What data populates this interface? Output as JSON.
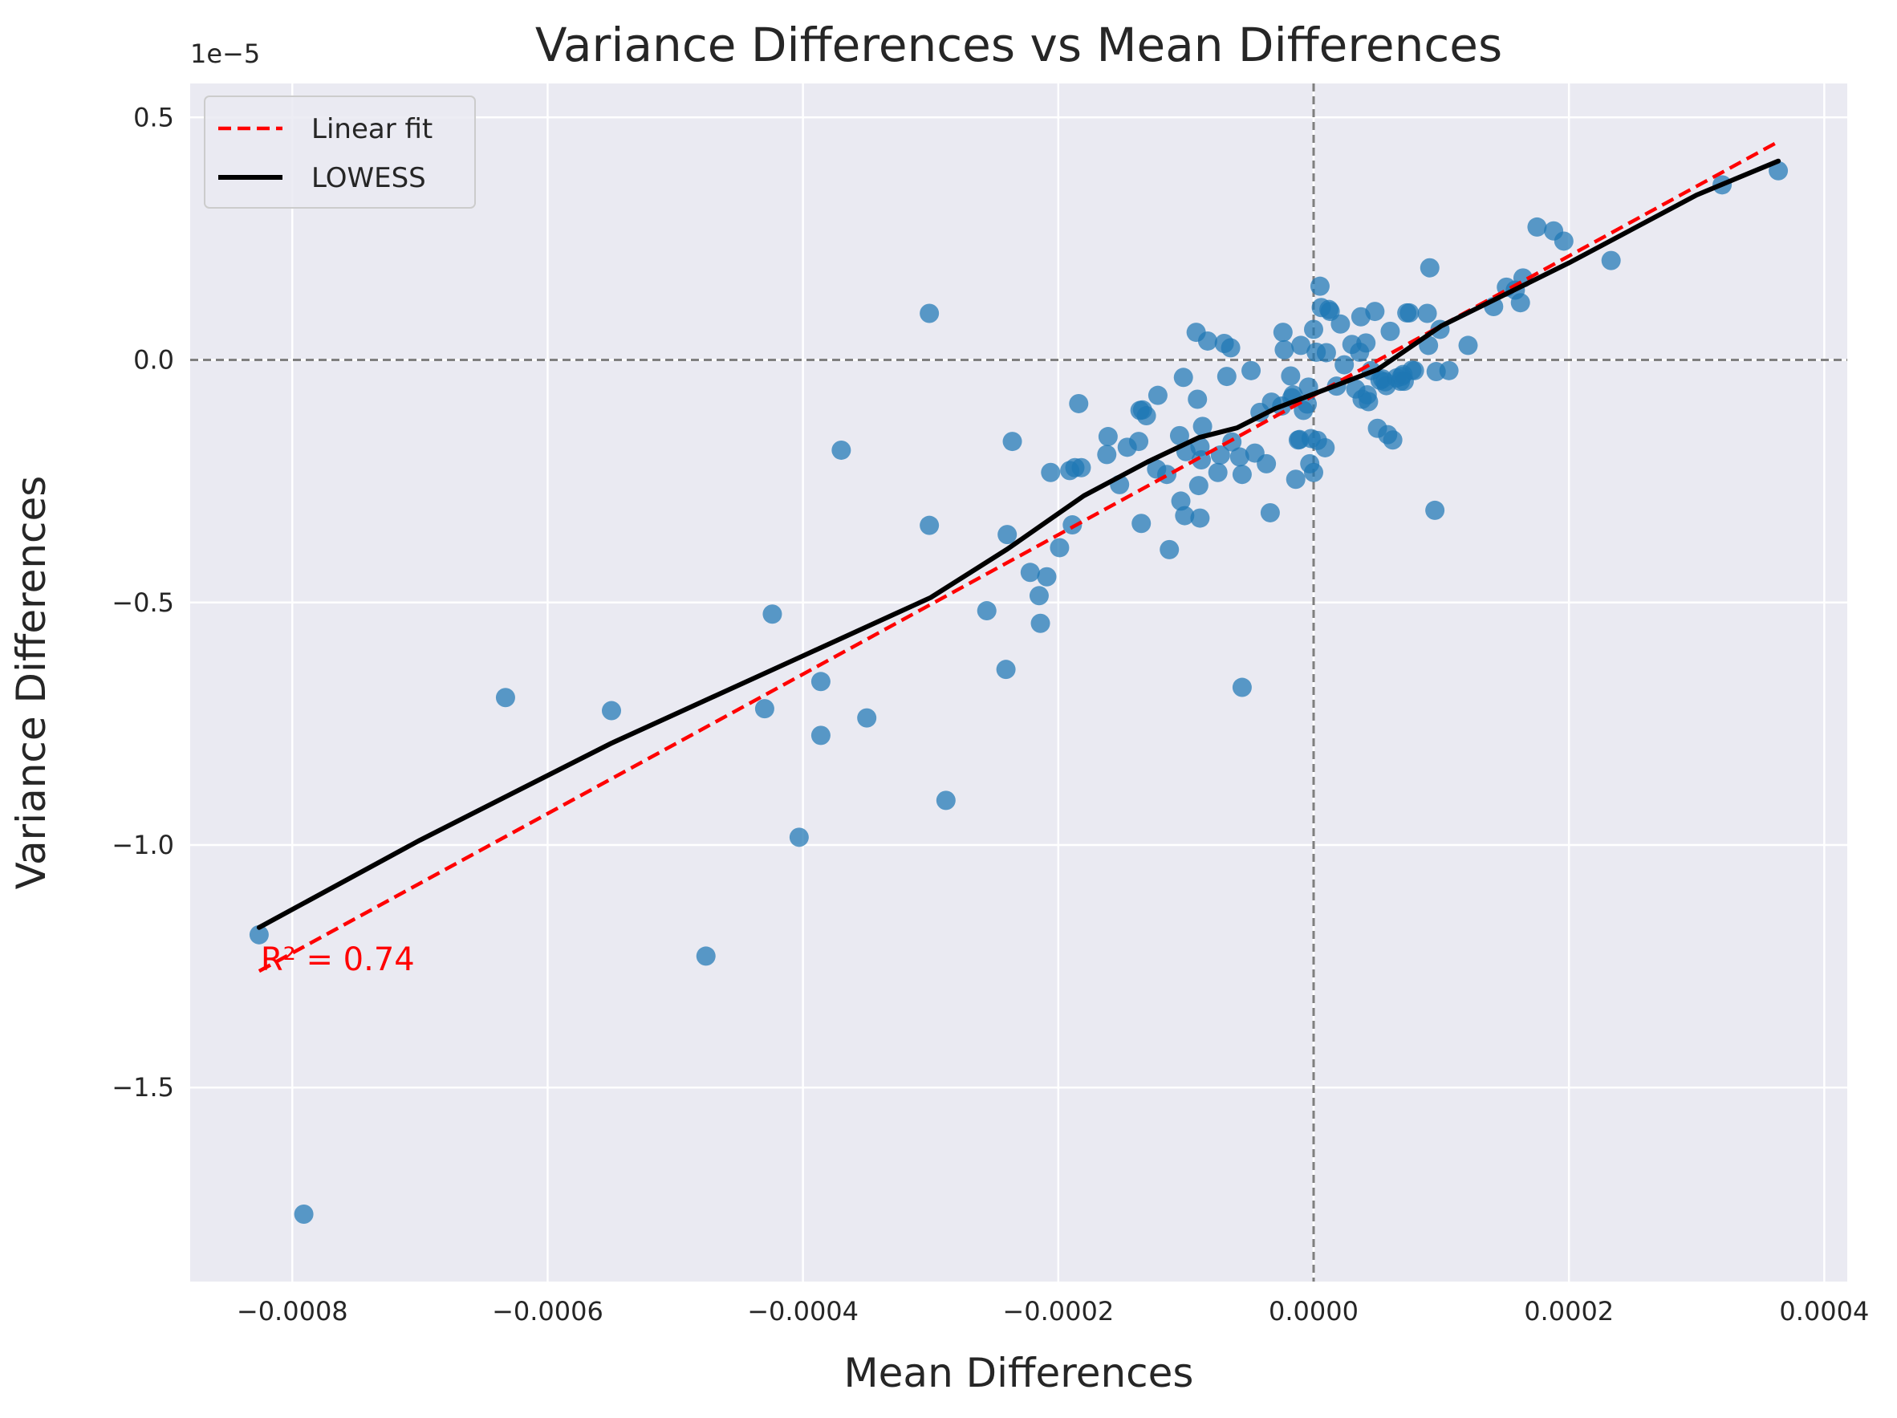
{
  "chart_data": {
    "type": "scatter",
    "title": "Variance Differences vs Mean Differences",
    "xlabel": "Mean Differences",
    "ylabel": "Variance Differences",
    "y_offset_label": "1e−5",
    "xlim": [
      -0.00088,
      0.000418
    ],
    "ylim": [
      -1.9,
      0.57
    ],
    "x_ticks": [
      {
        "value": -0.0008,
        "label": "−0.0008"
      },
      {
        "value": -0.0006,
        "label": "−0.0006"
      },
      {
        "value": -0.0004,
        "label": "−0.0004"
      },
      {
        "value": -0.0002,
        "label": "−0.0002"
      },
      {
        "value": 0.0,
        "label": "0.0000"
      },
      {
        "value": 0.0002,
        "label": "0.0002"
      },
      {
        "value": 0.0004,
        "label": "0.0004"
      }
    ],
    "y_ticks": [
      {
        "value": 0.5,
        "label": "0.5"
      },
      {
        "value": 0.0,
        "label": "0.0"
      },
      {
        "value": -0.5,
        "label": "−0.5"
      },
      {
        "value": -1.0,
        "label": "−1.0"
      },
      {
        "value": -1.5,
        "label": "−1.5"
      }
    ],
    "grid": true,
    "reference_lines": {
      "x": 0.0,
      "y": 0.0,
      "style": "dashed",
      "color": "#7f7f7f"
    },
    "colors": {
      "background": "#eaeaf2",
      "points": "#1f77b4",
      "linear_fit": "#ff0000",
      "lowess": "#000000",
      "annotation": "#ff0000"
    },
    "legend": {
      "position": "top-left",
      "entries": [
        {
          "label": "Linear fit",
          "style": "dashed",
          "color": "#ff0000"
        },
        {
          "label": "LOWESS",
          "style": "solid",
          "color": "#000000"
        }
      ]
    },
    "annotation": {
      "text": "R² = 0.74",
      "x": -0.000826,
      "y": -1.235
    },
    "series": [
      {
        "name": "points",
        "x": [
          -0.000826,
          -0.000791,
          -0.000633,
          -0.00055,
          -0.000476,
          -0.00043,
          -0.000424,
          -0.000403,
          -0.000386,
          -0.000386,
          -0.00037,
          -0.00035,
          -0.000301,
          -0.000301,
          -0.000288,
          -0.000256,
          -0.000241,
          -0.00024,
          -0.000236,
          -0.000222,
          -0.000215,
          -0.000214,
          -0.000209,
          -0.000206,
          -0.000199,
          -0.000191,
          -0.000189,
          -0.000187,
          -0.000184,
          -0.000182,
          -0.000162,
          -0.000161,
          -0.000152,
          -0.000146,
          -0.000137,
          -0.000136,
          -0.000135,
          -0.000134,
          -0.000131,
          -0.000123,
          -0.000122,
          -0.000115,
          -0.000113,
          -0.000105,
          -0.000104,
          -0.000102,
          -0.000101,
          -0.0001,
          -9.2e-05,
          -9.1e-05,
          -9e-05,
          -8.9e-05,
          -8.9e-05,
          -8.8e-05,
          -8.7e-05,
          -8.3e-05,
          -7.5e-05,
          -7.3e-05,
          -7e-05,
          -6.8e-05,
          -6.5e-05,
          -6.4e-05,
          -5.8e-05,
          -5.6e-05,
          -5.6e-05,
          -4.9e-05,
          -4.6e-05,
          -4.2e-05,
          -3.7e-05,
          -3.4e-05,
          -3.3e-05,
          -2.5e-05,
          -2.4e-05,
          -2.3e-05,
          -1.8e-05,
          -1.7e-05,
          -1.6e-05,
          -1.4e-05,
          -1.2e-05,
          -1.1e-05,
          -1e-05,
          -8e-06,
          -5e-06,
          -4e-06,
          -3e-06,
          -2e-06,
          0.0,
          0.0,
          2e-06,
          3e-06,
          5e-06,
          6e-06,
          9e-06,
          1e-05,
          1.2e-05,
          1.3e-05,
          1.8e-05,
          2.1e-05,
          2.4e-05,
          3e-05,
          3.3e-05,
          3.6e-05,
          3.7e-05,
          3.8e-05,
          4.1e-05,
          4.2e-05,
          4.3e-05,
          4.5e-05,
          4.8e-05,
          5e-05,
          5.2e-05,
          5.4e-05,
          5.6e-05,
          5.7e-05,
          5.8e-05,
          6e-05,
          6.2e-05,
          6.5e-05,
          6.8e-05,
          6.9e-05,
          7e-05,
          7.1e-05,
          7.3e-05,
          7.5e-05,
          7.7e-05,
          7.9e-05,
          8.9e-05,
          9e-05,
          9.1e-05,
          9.5e-05,
          9.6e-05,
          9.9e-05,
          0.000106,
          0.000121,
          0.000141,
          0.000151,
          0.000158,
          0.000162,
          0.000164,
          0.000175,
          0.000188,
          0.000196,
          0.000233,
          0.00032,
          0.000364
        ],
        "y": [
          -1.185,
          -1.761,
          -0.696,
          -0.723,
          -1.229,
          -0.719,
          -0.524,
          -0.984,
          -0.663,
          -0.774,
          -0.186,
          -0.738,
          0.096,
          -0.341,
          -0.908,
          -0.517,
          -0.638,
          -0.36,
          -0.168,
          -0.438,
          -0.486,
          -0.543,
          -0.447,
          -0.232,
          -0.387,
          -0.228,
          -0.34,
          -0.222,
          -0.09,
          -0.222,
          -0.195,
          -0.158,
          -0.257,
          -0.18,
          -0.168,
          -0.104,
          -0.337,
          -0.103,
          -0.115,
          -0.225,
          -0.073,
          -0.236,
          -0.391,
          -0.156,
          -0.291,
          -0.036,
          -0.321,
          -0.189,
          0.057,
          -0.081,
          -0.259,
          -0.326,
          -0.179,
          -0.206,
          -0.137,
          0.039,
          -0.232,
          -0.196,
          0.034,
          -0.034,
          0.025,
          -0.169,
          -0.2,
          -0.675,
          -0.236,
          -0.022,
          -0.192,
          -0.108,
          -0.214,
          -0.315,
          -0.087,
          -0.095,
          0.057,
          0.021,
          -0.033,
          -0.078,
          -0.072,
          -0.246,
          -0.165,
          -0.164,
          0.03,
          -0.104,
          -0.091,
          -0.056,
          -0.214,
          -0.162,
          0.063,
          -0.232,
          0.016,
          -0.166,
          0.152,
          0.108,
          -0.181,
          0.015,
          0.104,
          0.1,
          -0.054,
          0.074,
          -0.01,
          0.032,
          -0.06,
          0.016,
          0.089,
          -0.081,
          0.035,
          -0.072,
          -0.086,
          -0.022,
          0.1,
          -0.141,
          -0.042,
          -0.039,
          -0.045,
          -0.053,
          -0.154,
          0.059,
          -0.165,
          -0.037,
          -0.044,
          -0.034,
          -0.03,
          -0.044,
          0.097,
          0.097,
          -0.021,
          -0.022,
          0.096,
          0.03,
          0.19,
          -0.31,
          -0.024,
          0.063,
          -0.022,
          0.03,
          0.11,
          0.15,
          0.144,
          0.118,
          0.169,
          0.274,
          0.266,
          0.245,
          0.205,
          0.361,
          0.39
        ]
      },
      {
        "name": "Linear fit",
        "x": [
          -0.000826,
          0.000364
        ],
        "y": [
          -1.26,
          0.45
        ]
      },
      {
        "name": "LOWESS",
        "x": [
          -0.000826,
          -0.0007,
          -0.00055,
          -0.0004,
          -0.0003,
          -0.00024,
          -0.00018,
          -0.00013,
          -9e-05,
          -6e-05,
          -3e-05,
          0.0,
          5e-05,
          0.0001,
          0.0002,
          0.0003,
          0.000364
        ],
        "y": [
          -1.17,
          -0.99,
          -0.79,
          -0.61,
          -0.49,
          -0.39,
          -0.28,
          -0.21,
          -0.16,
          -0.14,
          -0.1,
          -0.07,
          -0.02,
          0.07,
          0.2,
          0.34,
          0.41
        ]
      }
    ]
  }
}
